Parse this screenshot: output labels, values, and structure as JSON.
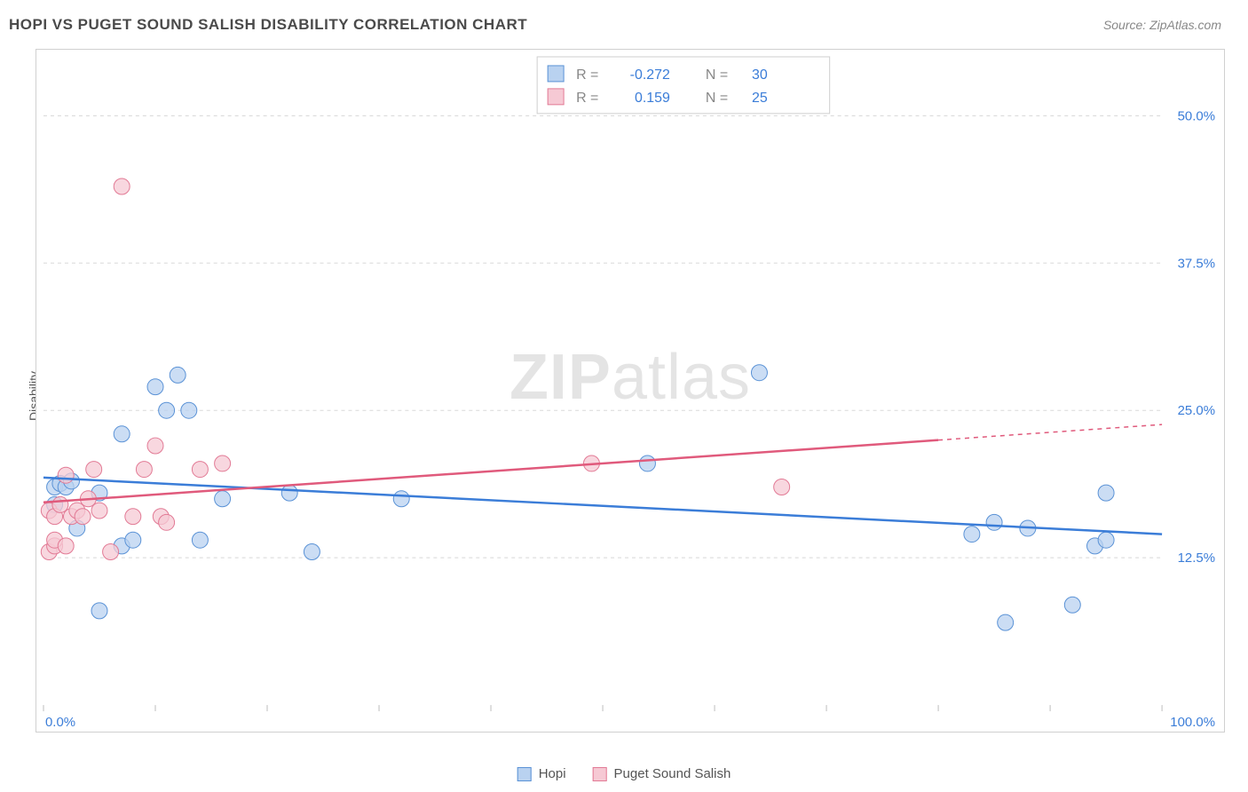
{
  "header": {
    "title": "HOPI VS PUGET SOUND SALISH DISABILITY CORRELATION CHART",
    "source_label": "Source: ZipAtlas.com"
  },
  "watermark": {
    "text1": "ZIP",
    "text2": "atlas"
  },
  "chart": {
    "type": "scatter",
    "ylabel": "Disability",
    "background_color": "#ffffff",
    "grid_color": "#d8d8d8",
    "grid_dash": "4,4",
    "border_color": "#d0d0d0",
    "xlim": [
      0,
      100
    ],
    "ylim": [
      0,
      55
    ],
    "yticks": [
      {
        "v": 12.5,
        "label": "12.5%"
      },
      {
        "v": 25.0,
        "label": "25.0%"
      },
      {
        "v": 37.5,
        "label": "37.5%"
      },
      {
        "v": 50.0,
        "label": "50.0%"
      }
    ],
    "xticks_minor": [
      0,
      10,
      20,
      30,
      40,
      50,
      60,
      70,
      80,
      90,
      100
    ],
    "xtick_labels": [
      {
        "v": 0,
        "label": "0.0%"
      },
      {
        "v": 100,
        "label": "100.0%"
      }
    ],
    "tick_label_color": "#3b7dd8",
    "tick_label_fontsize": 15,
    "marker_radius": 9,
    "marker_stroke_width": 1,
    "trend_stroke_width": 2.5,
    "series": [
      {
        "name": "Hopi",
        "fill": "#b9d2f0",
        "stroke": "#5a92d6",
        "line_color": "#3b7dd8",
        "R": "-0.272",
        "N": "30",
        "points": [
          [
            1,
            18.5
          ],
          [
            1,
            17
          ],
          [
            1.5,
            18.8
          ],
          [
            2,
            18.5
          ],
          [
            2.5,
            19
          ],
          [
            3,
            15
          ],
          [
            5,
            8
          ],
          [
            5,
            18
          ],
          [
            7,
            13.5
          ],
          [
            7,
            23
          ],
          [
            8,
            14
          ],
          [
            10,
            27
          ],
          [
            11,
            25
          ],
          [
            12,
            28
          ],
          [
            13,
            25
          ],
          [
            14,
            14
          ],
          [
            16,
            17.5
          ],
          [
            22,
            18
          ],
          [
            24,
            13
          ],
          [
            32,
            17.5
          ],
          [
            54,
            20.5
          ],
          [
            64,
            28.2
          ],
          [
            83,
            14.5
          ],
          [
            85,
            15.5
          ],
          [
            86,
            7
          ],
          [
            88,
            15
          ],
          [
            92,
            8.5
          ],
          [
            94,
            13.5
          ],
          [
            95,
            18
          ],
          [
            95,
            14
          ]
        ],
        "trend": {
          "x1": 0,
          "y1": 19.3,
          "x2": 100,
          "y2": 14.5,
          "dash_after_x": null
        }
      },
      {
        "name": "Puget Sound Salish",
        "fill": "#f6c9d4",
        "stroke": "#e27a95",
        "line_color": "#e05a7c",
        "R": "0.159",
        "N": "25",
        "points": [
          [
            0.5,
            13
          ],
          [
            0.5,
            16.5
          ],
          [
            1,
            13.5
          ],
          [
            1,
            14
          ],
          [
            1,
            16
          ],
          [
            1.5,
            17
          ],
          [
            2,
            13.5
          ],
          [
            2,
            19.5
          ],
          [
            2.5,
            16
          ],
          [
            3,
            16.5
          ],
          [
            3.5,
            16
          ],
          [
            4,
            17.5
          ],
          [
            4.5,
            20
          ],
          [
            5,
            16.5
          ],
          [
            6,
            13
          ],
          [
            7,
            44
          ],
          [
            8,
            16
          ],
          [
            9,
            20
          ],
          [
            10,
            22
          ],
          [
            10.5,
            16
          ],
          [
            11,
            15.5
          ],
          [
            14,
            20
          ],
          [
            16,
            20.5
          ],
          [
            49,
            20.5
          ],
          [
            66,
            18.5
          ]
        ],
        "trend": {
          "x1": 0,
          "y1": 17.2,
          "x2": 100,
          "y2": 23.8,
          "dash_after_x": 80
        }
      }
    ],
    "stats_box": {
      "border_color": "#cfcfcf",
      "bg": "#ffffff",
      "label_color": "#888888",
      "value_color": "#3b7dd8",
      "fontsize": 16
    },
    "bottom_legend_fontsize": 15
  }
}
